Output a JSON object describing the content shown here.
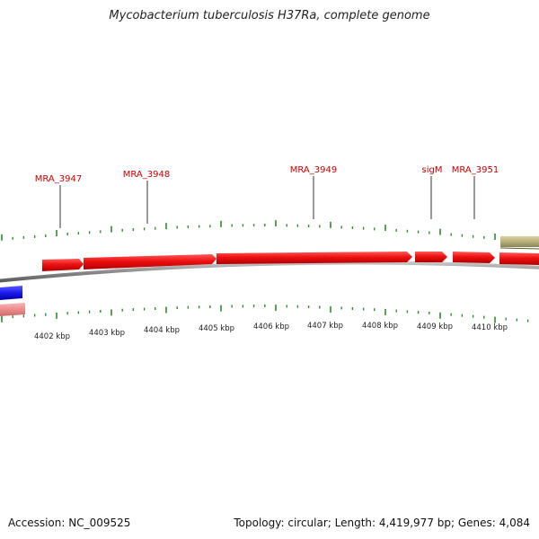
{
  "title": "Mycobacterium tuberculosis H37Ra, complete genome",
  "footer": {
    "accession": "Accession: NC_009525",
    "summary": "Topology: circular; Length: 4,419,977 bp; Genes: 4,084"
  },
  "colors": {
    "gene_forward": "#ee1111",
    "gene_reverse": "#1a1aee",
    "gene_reverse_light": "#ee8c8c",
    "other_feature": "#b8b07a",
    "backbone": "#8a8a8a",
    "tick": "#2e8b2e",
    "label": "#cc0000"
  },
  "gene_labels": [
    {
      "name": "MRA_3947"
    },
    {
      "name": "MRA_3948"
    },
    {
      "name": "MRA_3949"
    },
    {
      "name": "sigM"
    },
    {
      "name": "MRA_3951"
    }
  ],
  "scale_labels": [
    "4402 kbp",
    "4403 kbp",
    "4404 kbp",
    "4405 kbp",
    "4406 kbp",
    "4407 kbp",
    "4408 kbp",
    "4409 kbp",
    "4410 kbp"
  ]
}
